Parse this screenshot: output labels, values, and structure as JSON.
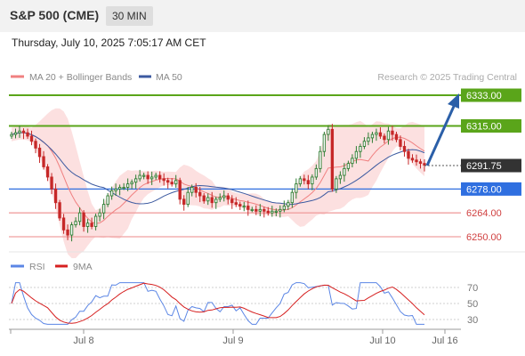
{
  "header": {
    "instrument": "S&P 500 (CME)",
    "timeframe": "30 MIN"
  },
  "timestamp": "Thursday, July 10, 2025 7:05:17 AM CET",
  "legend": {
    "ma20_label": "MA 20 + Bollinger Bands",
    "ma50_label": "MA 50",
    "credit": "Research © 2025 Trading Central"
  },
  "colors": {
    "resistance": "#5aa51a",
    "support_strong": "#2f6fe0",
    "support": "#f0a0a0",
    "candle_up": "#2e7d32",
    "candle_down": "#c62828",
    "ma20": "#f08080",
    "ma50": "#3c5aa0",
    "band_fill": "#fbd5d5",
    "arrow": "#2b5fa8",
    "rsi": "#5b86e5",
    "rsi_ma": "#d62020"
  },
  "chart_data": [
    {
      "type": "candlestick",
      "x_ticks": [
        "Jul 8",
        "Jul 9",
        "Jul 10",
        "Jul 16"
      ],
      "ylim": [
        6243,
        6342
      ],
      "current_price": "6291.75",
      "levels": [
        {
          "label": "6333.00",
          "value": 6333.0,
          "kind": "resistance"
        },
        {
          "label": "6315.00",
          "value": 6315.0,
          "kind": "resistance"
        },
        {
          "label": "6278.00",
          "value": 6278.0,
          "kind": "support_strong"
        },
        {
          "label": "6264.00",
          "value": 6264.0,
          "kind": "support"
        },
        {
          "label": "6250.00",
          "value": 6250.0,
          "kind": "support"
        }
      ],
      "close_series": [
        6310,
        6311,
        6312,
        6311,
        6309,
        6306,
        6302,
        6297,
        6291,
        6285,
        6278,
        6270,
        6261,
        6254,
        6251,
        6257,
        6259,
        6264,
        6256,
        6258,
        6256,
        6262,
        6264,
        6269,
        6274,
        6277,
        6278,
        6279,
        6279,
        6281,
        6282,
        6284,
        6286,
        6286,
        6284,
        6285,
        6286,
        6284,
        6283,
        6282,
        6281,
        6283,
        6272,
        6269,
        6276,
        6279,
        6276,
        6274,
        6271,
        6273,
        6270,
        6272,
        6273,
        6274,
        6272,
        6270,
        6269,
        6268,
        6268,
        6266,
        6266,
        6265,
        6266,
        6265,
        6264,
        6265,
        6265,
        6266,
        6268,
        6270,
        6276,
        6281,
        6284,
        6283,
        6281,
        6285,
        6290,
        6300,
        6310,
        6313,
        6278,
        6284,
        6286,
        6290,
        6293,
        6296,
        6300,
        6303,
        6306,
        6308,
        6310,
        6311,
        6309,
        6307,
        6312,
        6310,
        6307,
        6303,
        6300,
        6296,
        6295,
        6294,
        6293,
        6292
      ]
    },
    {
      "type": "line",
      "title": "RSI",
      "series": [
        {
          "name": "RSI",
          "color": "#5b86e5"
        },
        {
          "name": "9MA",
          "color": "#d62020"
        }
      ],
      "y_ticks": [
        70,
        50,
        30
      ],
      "ylim": [
        20,
        80
      ]
    }
  ]
}
